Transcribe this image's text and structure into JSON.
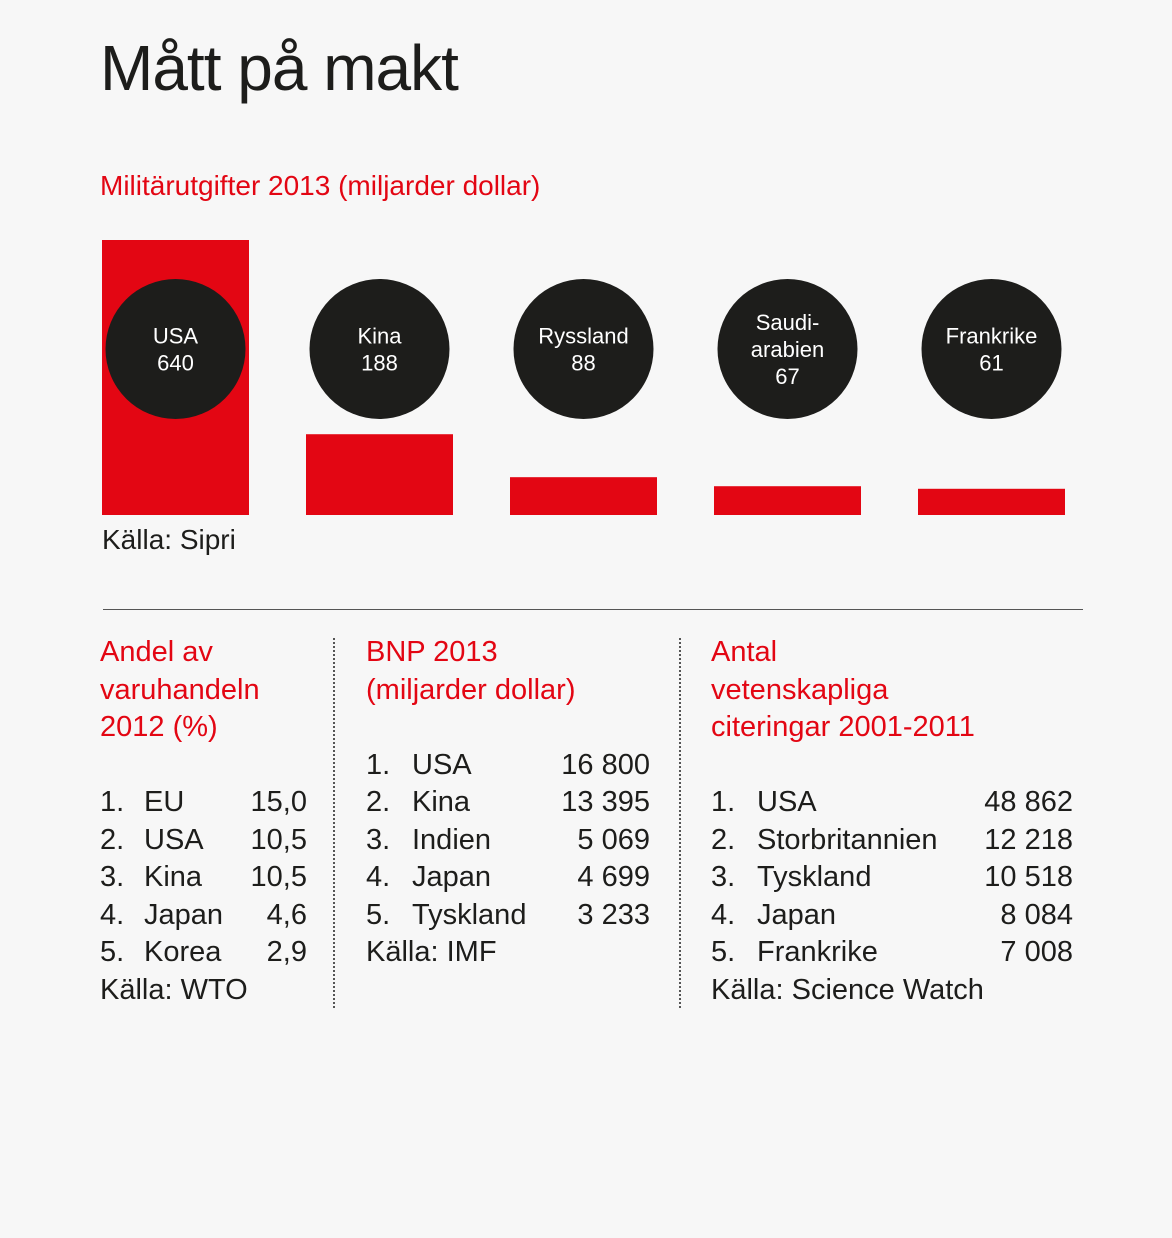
{
  "title": "Mått på makt",
  "colors": {
    "accent": "#e30613",
    "bubble": "#1d1d1b",
    "text": "#1d1d1b",
    "background": "#f7f7f7"
  },
  "chart_data": {
    "type": "bar",
    "title": "Militärutgifter 2013 (miljarder dollar)",
    "categories": [
      "USA",
      "Kina",
      "Ryssland",
      "Saudi-arabien",
      "Frankrike"
    ],
    "labels": [
      [
        "USA",
        "640"
      ],
      [
        "Kina",
        "188"
      ],
      [
        "Ryssland",
        "88"
      ],
      [
        "Saudi-",
        "arabien",
        "67"
      ],
      [
        "Frankrike",
        "61"
      ]
    ],
    "values": [
      640,
      188,
      88,
      67,
      61
    ],
    "source": "Källa: Sipri"
  },
  "trade": {
    "heading": [
      "Andel av",
      "varuhandeln",
      "2012 (%)"
    ],
    "rows": [
      {
        "rank": "1.",
        "name": "EU",
        "value": "15,0"
      },
      {
        "rank": "2.",
        "name": "USA",
        "value": "10,5"
      },
      {
        "rank": "3.",
        "name": "Kina",
        "value": "10,5"
      },
      {
        "rank": "4.",
        "name": "Japan",
        "value": "4,6"
      },
      {
        "rank": "5.",
        "name": "Korea",
        "value": "2,9"
      }
    ],
    "source": "Källa: WTO"
  },
  "gdp": {
    "heading": [
      "BNP 2013",
      "(miljarder dollar)"
    ],
    "rows": [
      {
        "rank": "1.",
        "name": "USA",
        "value": "16 800"
      },
      {
        "rank": "2.",
        "name": "Kina",
        "value": "13 395"
      },
      {
        "rank": "3.",
        "name": "Indien",
        "value": "5 069"
      },
      {
        "rank": "4.",
        "name": "Japan",
        "value": "4 699"
      },
      {
        "rank": "5.",
        "name": "Tyskland",
        "value": "3 233"
      }
    ],
    "source": "Källa:  IMF"
  },
  "citations": {
    "heading": [
      "Antal",
      "vetenskapliga",
      "citeringar 2001-2011"
    ],
    "rows": [
      {
        "rank": "1.",
        "name": "USA",
        "value": "48 862"
      },
      {
        "rank": "2.",
        "name": "Storbritannien",
        "value": "12 218"
      },
      {
        "rank": "3.",
        "name": "Tyskland",
        "value": "10 518"
      },
      {
        "rank": "4.",
        "name": "Japan",
        "value": "8 084"
      },
      {
        "rank": "5.",
        "name": "Frankrike",
        "value": "7 008"
      }
    ],
    "source": "Källa: Science Watch"
  }
}
